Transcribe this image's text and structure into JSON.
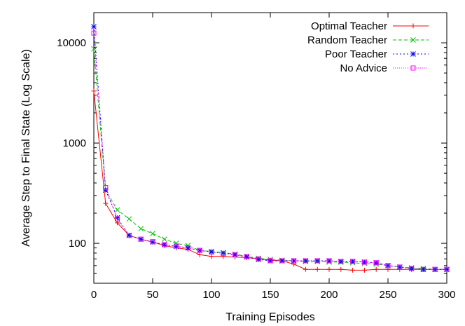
{
  "chart_data": {
    "type": "line",
    "xlabel": "Training Episodes",
    "ylabel": "Average Step to Final State (Log Scale)",
    "xlim": [
      0,
      300
    ],
    "ylim": [
      40,
      20000
    ],
    "yscale": "log",
    "xticks": [
      0,
      50,
      100,
      150,
      200,
      250,
      300
    ],
    "xtick_labels": [
      "0",
      "50",
      "100",
      "150",
      "200",
      "250",
      "300"
    ],
    "yticks": [
      100,
      1000,
      10000
    ],
    "ytick_labels": [
      "100",
      "1000",
      "10000"
    ],
    "grid": false,
    "legend_position": "top-right",
    "x": [
      0,
      10,
      20,
      30,
      40,
      50,
      60,
      70,
      80,
      90,
      100,
      110,
      120,
      130,
      140,
      150,
      160,
      170,
      180,
      190,
      200,
      210,
      220,
      230,
      240,
      250,
      260,
      270,
      280,
      290,
      300
    ],
    "series": [
      {
        "name": "Optimal Teacher",
        "color": "#ff0000",
        "dash": "",
        "marker": "plus",
        "values": [
          3300,
          250,
          160,
          120,
          110,
          103,
          95,
          90,
          87,
          77,
          74,
          74,
          73,
          72,
          70,
          68,
          67,
          62,
          55,
          55,
          55,
          55,
          54,
          54,
          55,
          55,
          55,
          55,
          55,
          55,
          55
        ]
      },
      {
        "name": "Random Teacher",
        "color": "#00c000",
        "dash": "5,3",
        "marker": "x",
        "values": [
          8700,
          340,
          215,
          175,
          140,
          125,
          110,
          100,
          95,
          85,
          83,
          81,
          78,
          74,
          71,
          69,
          68,
          67,
          66,
          66,
          65,
          65,
          64,
          63,
          62,
          60,
          58,
          57,
          56,
          55,
          55
        ]
      },
      {
        "name": "Poor Teacher",
        "color": "#0000ff",
        "dash": "2,3",
        "marker": "star",
        "values": [
          14500,
          340,
          180,
          120,
          110,
          103,
          97,
          93,
          90,
          85,
          82,
          80,
          77,
          73,
          69,
          67,
          67,
          67,
          67,
          67,
          67,
          66,
          66,
          65,
          64,
          60,
          58,
          56,
          55,
          55,
          55
        ]
      },
      {
        "name": "No Advice",
        "color": "#ff00ff",
        "dash": "1,2",
        "marker": "square",
        "values": [
          12500,
          360,
          175,
          120,
          110,
          104,
          97,
          94,
          90,
          85,
          82,
          79,
          77,
          74,
          70,
          67,
          67,
          67,
          67,
          67,
          67,
          66,
          66,
          65,
          64,
          60,
          58,
          56,
          55,
          55,
          55
        ]
      }
    ]
  }
}
